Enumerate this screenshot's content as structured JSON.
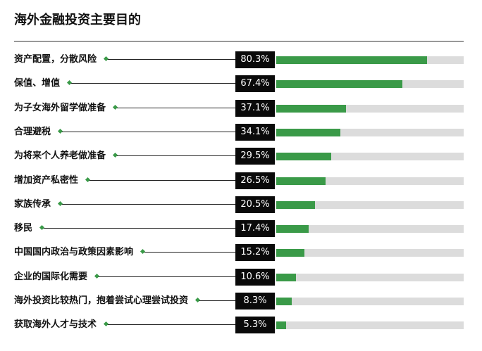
{
  "chart_data": {
    "type": "bar",
    "title": "海外金融投资主要目的",
    "unit": "%",
    "xlim": [
      0,
      100
    ],
    "colors": {
      "bar": "#3a9a48",
      "track": "#dcdcdc",
      "badge": "#0a0a0a"
    },
    "categories": [
      "资产配置，分散风险",
      "保值、增值",
      "为子女海外留学做准备",
      "合理避税",
      "为将来个人养老做准备",
      "增加资产私密性",
      "家族传承",
      "移民",
      "中国国内政治与政策因素影响",
      "企业的国际化需要",
      "海外投资比较热门，抱着尝试心理尝试投资",
      "获取海外人才与技术"
    ],
    "values": [
      80.3,
      67.4,
      37.1,
      34.1,
      29.5,
      26.5,
      20.5,
      17.4,
      15.2,
      10.6,
      8.3,
      5.3
    ],
    "labels": [
      "80.3%",
      "67.4%",
      "37.1%",
      "34.1%",
      "29.5%",
      "26.5%",
      "20.5%",
      "17.4%",
      "15.2%",
      "10.6%",
      "8.3%",
      "5.3%"
    ]
  }
}
